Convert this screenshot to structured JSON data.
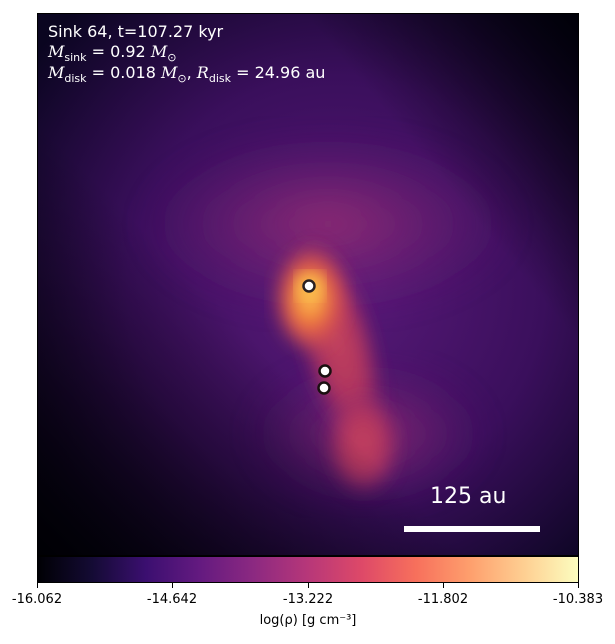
{
  "header": {
    "line1": "Sink 64, t=107.27 kyr",
    "msink_value": "0.92",
    "mdisk_value": "0.018",
    "rdisk_value": "24.96",
    "unit_msun": "M",
    "unit_au": "au"
  },
  "scale_bar": {
    "label": "125 au"
  },
  "colorbar": {
    "ticks": [
      "-16.062",
      "-14.642",
      "-13.222",
      "-11.802",
      "-10.383"
    ],
    "label": "log(ρ) [g cm⁻³]",
    "colormap": "inferno"
  },
  "sinks": [
    {
      "name": "sink-upper"
    },
    {
      "name": "sink-middle"
    },
    {
      "name": "sink-lower"
    }
  ]
}
